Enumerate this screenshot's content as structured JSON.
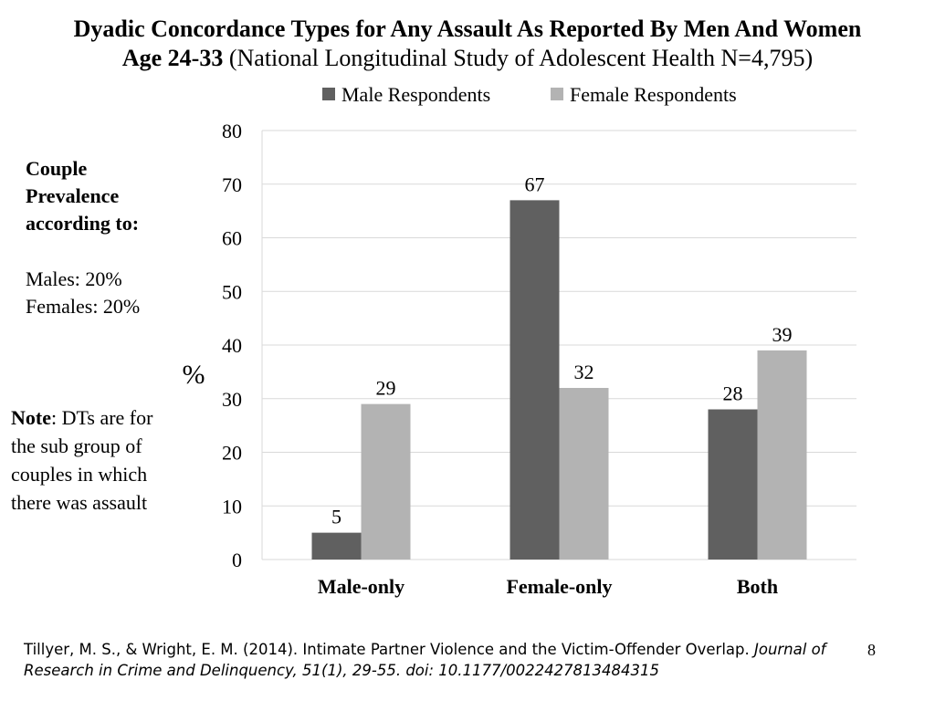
{
  "title": {
    "line1": "Dyadic Concordance Types for Any Assault As Reported By Men And Women",
    "line2_bold": "Age 24-33",
    "line2_rest": " (National Longitudinal Study of Adolescent Health N=4,795)"
  },
  "prevalence": {
    "heading_line1": "Couple",
    "heading_line2": "Prevalence",
    "heading_line3": "according to:",
    "males": "Males: 20%",
    "females": "Females: 20%"
  },
  "note": {
    "label": "Note",
    "text": ":  DTs are for the sub group of couples in which there was assault"
  },
  "citation": {
    "part1": "Tillyer, M. S., & Wright, E. M. (2014). Intimate Partner Violence and the Victim-Offender Overlap. ",
    "part2_italic": "Journal of Research in Crime and Delinquency, 51(1), 29-55. doi: 10.1177/0022427813484315"
  },
  "slide_number": "8",
  "colors": {
    "male": "#606060",
    "female": "#b3b3b3",
    "grid": "#d9d9d9"
  },
  "chart_data": {
    "type": "bar",
    "categories": [
      "Male-only",
      "Female-only",
      "Both"
    ],
    "series": [
      {
        "name": "Male Respondents",
        "values": [
          5,
          67,
          28
        ]
      },
      {
        "name": "Female Respondents",
        "values": [
          29,
          32,
          39
        ]
      }
    ],
    "ylabel": "%",
    "ylim": [
      0,
      80
    ],
    "yticks": [
      0,
      10,
      20,
      30,
      40,
      50,
      60,
      70,
      80
    ],
    "grid": true,
    "legend": "top"
  }
}
